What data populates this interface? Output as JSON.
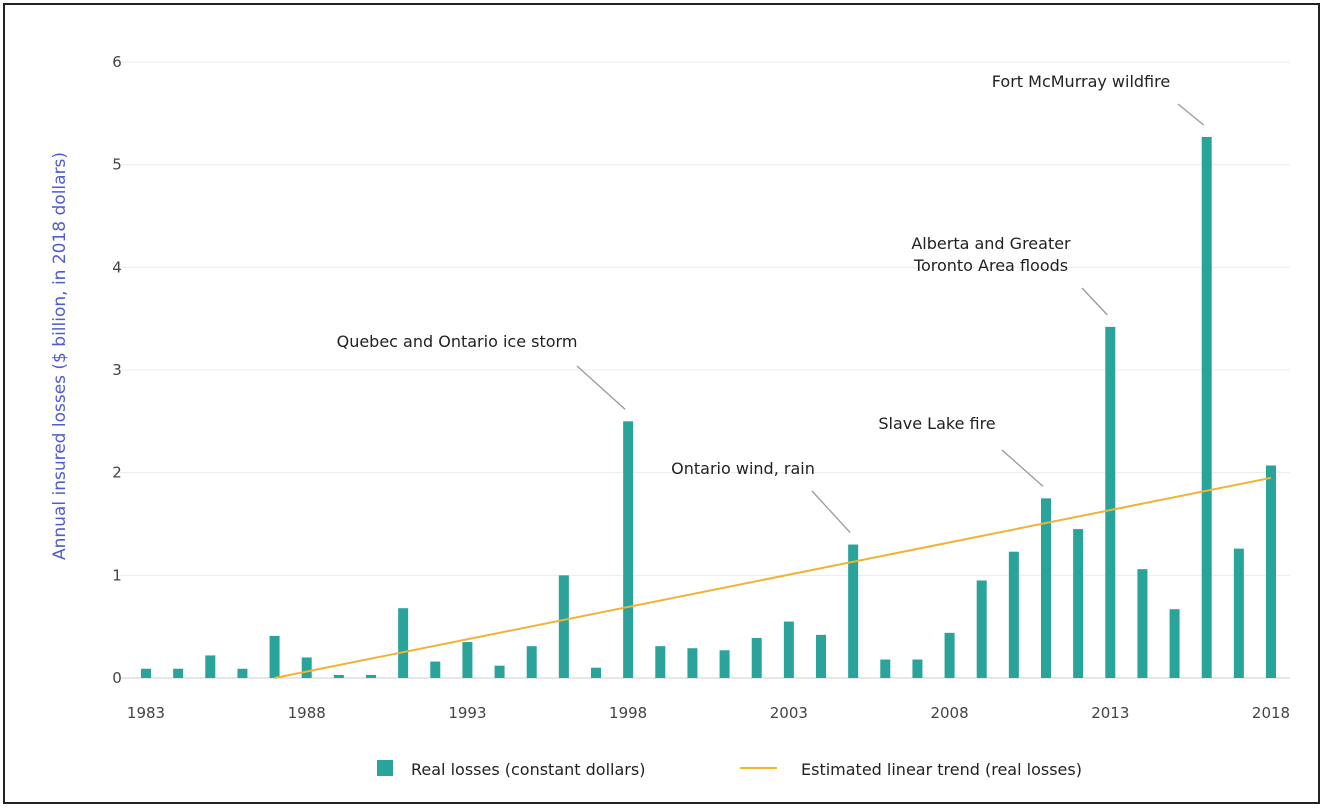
{
  "chart_data": {
    "type": "bar",
    "title": "",
    "xlabel": "",
    "ylabel": "Annual insured losses ($ billion, in 2018 dollars)",
    "ylim": [
      0,
      6
    ],
    "yticks": [
      0,
      1,
      2,
      3,
      4,
      5,
      6
    ],
    "xticks": [
      1983,
      1988,
      1993,
      1998,
      2003,
      2008,
      2013,
      2018
    ],
    "grid": "horizontal",
    "legend_position": "bottom",
    "colors": {
      "bars": "#2aa39a",
      "trend": "#f2b233",
      "ylabel": "#4f5bd5"
    },
    "series": [
      {
        "name": "Real losses (constant dollars)",
        "type": "bar",
        "x": [
          1983,
          1984,
          1985,
          1986,
          1987,
          1988,
          1989,
          1990,
          1991,
          1992,
          1993,
          1994,
          1995,
          1996,
          1997,
          1998,
          1999,
          2000,
          2001,
          2002,
          2003,
          2004,
          2005,
          2006,
          2007,
          2008,
          2009,
          2010,
          2011,
          2012,
          2013,
          2014,
          2015,
          2016,
          2017,
          2018
        ],
        "values": [
          0.09,
          0.09,
          0.22,
          0.09,
          0.41,
          0.2,
          0.03,
          0.03,
          0.68,
          0.16,
          0.35,
          0.12,
          0.31,
          1.0,
          0.1,
          2.5,
          0.31,
          0.29,
          0.27,
          0.39,
          0.55,
          0.42,
          1.3,
          0.18,
          0.18,
          0.44,
          0.95,
          1.23,
          1.75,
          1.45,
          3.42,
          1.06,
          0.67,
          5.27,
          1.26,
          2.07
        ]
      },
      {
        "name": "Estimated linear trend (real losses)",
        "type": "line",
        "x": [
          1987,
          2018
        ],
        "values": [
          0.0,
          1.95
        ]
      }
    ],
    "annotations": [
      {
        "lines": [
          "Quebec and Ontario ice storm"
        ],
        "year": 1998,
        "value": 2.5
      },
      {
        "lines": [
          "Ontario wind, rain"
        ],
        "year": 2005,
        "value": 1.3
      },
      {
        "lines": [
          "Slave Lake fire"
        ],
        "year": 2011,
        "value": 1.75
      },
      {
        "lines": [
          "Alberta and Greater",
          "Toronto Area floods"
        ],
        "year": 2013,
        "value": 3.42
      },
      {
        "lines": [
          "Fort McMurray wildfire"
        ],
        "year": 2016,
        "value": 5.27
      }
    ]
  }
}
